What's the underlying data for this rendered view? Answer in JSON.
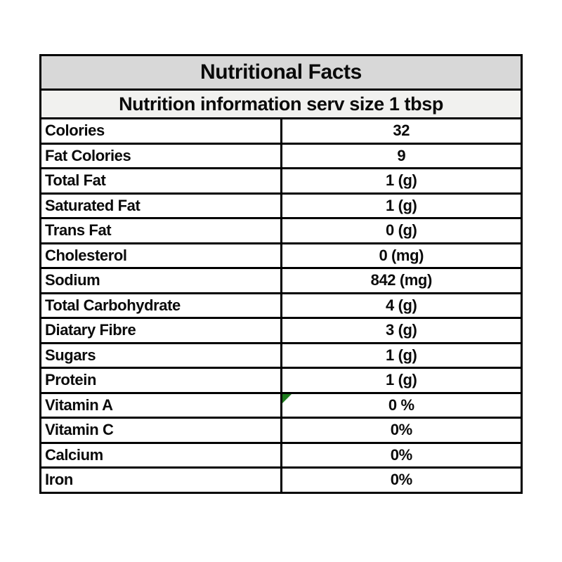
{
  "table": {
    "title": "Nutritional Facts",
    "subtitle": "Nutrition information serv size 1 tbsp",
    "colors": {
      "title_bg": "#d8d8d8",
      "subtitle_bg": "#f1f1ef",
      "border": "#000000",
      "indicator_green": "#1e7d1e",
      "text": "#0a0a0a",
      "page_bg": "#ffffff"
    },
    "rows": [
      {
        "label": "Colories",
        "value": "32"
      },
      {
        "label": "Fat Colories",
        "value": "9"
      },
      {
        "label": "Total Fat",
        "value": "1 (g)"
      },
      {
        "label": "Saturated Fat",
        "value": "1 (g)"
      },
      {
        "label": "Trans Fat",
        "value": "0 (g)"
      },
      {
        "label": "Cholesterol",
        "value": "0 (mg)"
      },
      {
        "label": "Sodium",
        "value": "842 (mg)"
      },
      {
        "label": "Total Carbohydrate",
        "value": "4 (g)"
      },
      {
        "label": "Diatary Fibre",
        "value": "3 (g)"
      },
      {
        "label": "Sugars",
        "value": "1 (g)"
      },
      {
        "label": "Protein",
        "value": "1 (g)"
      },
      {
        "label": "Vitamin A",
        "value": "0 %",
        "indicator": true
      },
      {
        "label": "Vitamin C",
        "value": "0%"
      },
      {
        "label": "Calcium",
        "value": "0%"
      },
      {
        "label": "Iron",
        "value": "0%"
      }
    ]
  }
}
